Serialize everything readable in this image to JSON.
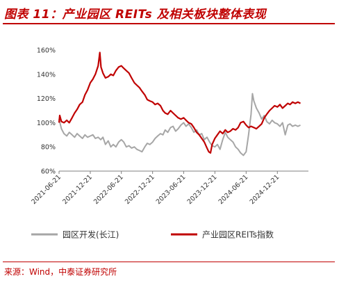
{
  "title": "图表 11：产业园区 REITs 及相关板块整体表现",
  "source": "来源：Wind，中泰证券研究所",
  "colors": {
    "accent": "#c00000",
    "gray_series": "#a6a6a6",
    "red_series": "#c00000"
  },
  "chart_data": {
    "type": "line",
    "title": "",
    "xlabel": "",
    "ylabel": "",
    "ylim": [
      60,
      160
    ],
    "yticks": [
      60,
      80,
      100,
      120,
      140,
      160
    ],
    "ytick_labels": [
      "60%",
      "80%",
      "100%",
      "120%",
      "140%",
      "160%"
    ],
    "xlim": [
      "2021-06-21",
      "2025-06-21"
    ],
    "xtick_labels": [
      "2021-06-21",
      "2021-12-21",
      "2022-06-21",
      "2022-12-21",
      "2023-06-21",
      "2023-12-21",
      "2024-06-21",
      "2024-12-21"
    ],
    "grid": false,
    "legend_position": "bottom",
    "series": [
      {
        "name": "园区开发(长江)",
        "color": "#a6a6a6",
        "points": [
          [
            "2021-06-21",
            103
          ],
          [
            "2021-07-05",
            95
          ],
          [
            "2021-07-20",
            91
          ],
          [
            "2021-08-05",
            89
          ],
          [
            "2021-08-20",
            92
          ],
          [
            "2021-09-05",
            90
          ],
          [
            "2021-09-20",
            88
          ],
          [
            "2021-10-05",
            91
          ],
          [
            "2021-10-20",
            89
          ],
          [
            "2021-11-05",
            87
          ],
          [
            "2021-11-20",
            90
          ],
          [
            "2021-12-05",
            88
          ],
          [
            "2021-12-21",
            89
          ],
          [
            "2022-01-05",
            90
          ],
          [
            "2022-01-20",
            87
          ],
          [
            "2022-02-05",
            88
          ],
          [
            "2022-02-20",
            86
          ],
          [
            "2022-03-05",
            88
          ],
          [
            "2022-03-20",
            82
          ],
          [
            "2022-04-05",
            85
          ],
          [
            "2022-04-20",
            80
          ],
          [
            "2022-05-05",
            82
          ],
          [
            "2022-05-20",
            80
          ],
          [
            "2022-06-05",
            84
          ],
          [
            "2022-06-21",
            86
          ],
          [
            "2022-07-05",
            84
          ],
          [
            "2022-07-20",
            80
          ],
          [
            "2022-08-05",
            81
          ],
          [
            "2022-08-20",
            79
          ],
          [
            "2022-09-05",
            80
          ],
          [
            "2022-09-20",
            78
          ],
          [
            "2022-10-05",
            77
          ],
          [
            "2022-10-20",
            76
          ],
          [
            "2022-11-05",
            80
          ],
          [
            "2022-11-20",
            83
          ],
          [
            "2022-12-05",
            82
          ],
          [
            "2022-12-21",
            84
          ],
          [
            "2023-01-05",
            87
          ],
          [
            "2023-01-20",
            89
          ],
          [
            "2023-02-05",
            91
          ],
          [
            "2023-02-20",
            90
          ],
          [
            "2023-03-05",
            94
          ],
          [
            "2023-03-20",
            92
          ],
          [
            "2023-04-05",
            96
          ],
          [
            "2023-04-20",
            97
          ],
          [
            "2023-05-05",
            93
          ],
          [
            "2023-05-20",
            95
          ],
          [
            "2023-06-05",
            98
          ],
          [
            "2023-06-21",
            100
          ],
          [
            "2023-07-05",
            97
          ],
          [
            "2023-07-20",
            99
          ],
          [
            "2023-08-05",
            96
          ],
          [
            "2023-08-20",
            92
          ],
          [
            "2023-09-05",
            94
          ],
          [
            "2023-09-20",
            90
          ],
          [
            "2023-10-05",
            91
          ],
          [
            "2023-10-20",
            86
          ],
          [
            "2023-11-05",
            88
          ],
          [
            "2023-11-20",
            84
          ],
          [
            "2023-12-05",
            81
          ],
          [
            "2023-12-21",
            80
          ],
          [
            "2024-01-05",
            82
          ],
          [
            "2024-01-20",
            78
          ],
          [
            "2024-02-05",
            86
          ],
          [
            "2024-02-20",
            92
          ],
          [
            "2024-03-05",
            88
          ],
          [
            "2024-03-20",
            86
          ],
          [
            "2024-04-05",
            84
          ],
          [
            "2024-04-20",
            80
          ],
          [
            "2024-05-05",
            78
          ],
          [
            "2024-05-20",
            75
          ],
          [
            "2024-06-05",
            73
          ],
          [
            "2024-06-21",
            76
          ],
          [
            "2024-07-05",
            90
          ],
          [
            "2024-07-20",
            107
          ],
          [
            "2024-07-28",
            124
          ],
          [
            "2024-08-05",
            118
          ],
          [
            "2024-08-20",
            112
          ],
          [
            "2024-09-05",
            108
          ],
          [
            "2024-09-20",
            103
          ],
          [
            "2024-10-05",
            106
          ],
          [
            "2024-10-20",
            101
          ],
          [
            "2024-11-05",
            99
          ],
          [
            "2024-11-20",
            102
          ],
          [
            "2024-12-05",
            100
          ],
          [
            "2024-12-21",
            99
          ],
          [
            "2025-01-05",
            97
          ],
          [
            "2025-01-20",
            100
          ],
          [
            "2025-02-05",
            90
          ],
          [
            "2025-02-20",
            98
          ],
          [
            "2025-03-05",
            99
          ],
          [
            "2025-03-20",
            97
          ],
          [
            "2025-04-05",
            98
          ],
          [
            "2025-04-20",
            97
          ],
          [
            "2025-05-05",
            98
          ]
        ]
      },
      {
        "name": "产业园区REITs指数",
        "color": "#c00000",
        "points": [
          [
            "2021-06-21",
            100
          ],
          [
            "2021-06-25",
            106
          ],
          [
            "2021-07-05",
            101
          ],
          [
            "2021-07-20",
            100
          ],
          [
            "2021-08-05",
            102
          ],
          [
            "2021-08-20",
            100
          ],
          [
            "2021-09-05",
            104
          ],
          [
            "2021-09-20",
            108
          ],
          [
            "2021-10-05",
            111
          ],
          [
            "2021-10-20",
            115
          ],
          [
            "2021-11-05",
            117
          ],
          [
            "2021-11-20",
            123
          ],
          [
            "2021-12-05",
            127
          ],
          [
            "2021-12-21",
            133
          ],
          [
            "2022-01-05",
            136
          ],
          [
            "2022-01-20",
            140
          ],
          [
            "2022-02-05",
            147
          ],
          [
            "2022-02-15",
            158
          ],
          [
            "2022-02-22",
            146
          ],
          [
            "2022-03-05",
            141
          ],
          [
            "2022-03-20",
            137
          ],
          [
            "2022-04-05",
            138
          ],
          [
            "2022-04-20",
            140
          ],
          [
            "2022-05-05",
            139
          ],
          [
            "2022-05-20",
            143
          ],
          [
            "2022-06-05",
            146
          ],
          [
            "2022-06-21",
            147
          ],
          [
            "2022-07-05",
            145
          ],
          [
            "2022-07-20",
            143
          ],
          [
            "2022-08-05",
            141
          ],
          [
            "2022-08-20",
            137
          ],
          [
            "2022-09-05",
            133
          ],
          [
            "2022-09-20",
            131
          ],
          [
            "2022-10-05",
            129
          ],
          [
            "2022-10-20",
            126
          ],
          [
            "2022-11-05",
            123
          ],
          [
            "2022-11-20",
            119
          ],
          [
            "2022-12-05",
            118
          ],
          [
            "2022-12-21",
            117
          ],
          [
            "2023-01-05",
            115
          ],
          [
            "2023-01-20",
            116
          ],
          [
            "2023-02-05",
            114
          ],
          [
            "2023-02-20",
            110
          ],
          [
            "2023-03-05",
            108
          ],
          [
            "2023-03-20",
            107
          ],
          [
            "2023-04-05",
            110
          ],
          [
            "2023-04-20",
            108
          ],
          [
            "2023-05-05",
            106
          ],
          [
            "2023-05-20",
            104
          ],
          [
            "2023-06-05",
            103
          ],
          [
            "2023-06-21",
            104
          ],
          [
            "2023-07-05",
            102
          ],
          [
            "2023-07-20",
            100
          ],
          [
            "2023-08-05",
            99
          ],
          [
            "2023-08-20",
            96
          ],
          [
            "2023-09-05",
            92
          ],
          [
            "2023-09-20",
            90
          ],
          [
            "2023-10-05",
            87
          ],
          [
            "2023-10-20",
            84
          ],
          [
            "2023-11-05",
            79
          ],
          [
            "2023-11-15",
            76
          ],
          [
            "2023-11-25",
            75
          ],
          [
            "2023-12-05",
            82
          ],
          [
            "2023-12-21",
            87
          ],
          [
            "2024-01-05",
            90
          ],
          [
            "2024-01-20",
            93
          ],
          [
            "2024-02-05",
            91
          ],
          [
            "2024-02-20",
            94
          ],
          [
            "2024-03-05",
            92
          ],
          [
            "2024-03-20",
            93
          ],
          [
            "2024-04-05",
            95
          ],
          [
            "2024-04-20",
            94
          ],
          [
            "2024-05-05",
            96
          ],
          [
            "2024-05-20",
            100
          ],
          [
            "2024-06-05",
            101
          ],
          [
            "2024-06-21",
            98
          ],
          [
            "2024-07-05",
            96
          ],
          [
            "2024-07-20",
            97
          ],
          [
            "2024-08-05",
            96
          ],
          [
            "2024-08-20",
            95
          ],
          [
            "2024-09-05",
            97
          ],
          [
            "2024-09-20",
            99
          ],
          [
            "2024-10-05",
            104
          ],
          [
            "2024-10-20",
            107
          ],
          [
            "2024-11-05",
            110
          ],
          [
            "2024-11-20",
            112
          ],
          [
            "2024-12-05",
            114
          ],
          [
            "2024-12-21",
            113
          ],
          [
            "2025-01-05",
            115
          ],
          [
            "2025-01-20",
            112
          ],
          [
            "2025-02-05",
            114
          ],
          [
            "2025-02-20",
            116
          ],
          [
            "2025-03-05",
            115
          ],
          [
            "2025-03-20",
            117
          ],
          [
            "2025-04-05",
            116
          ],
          [
            "2025-04-20",
            117
          ],
          [
            "2025-05-05",
            116
          ]
        ]
      }
    ]
  }
}
